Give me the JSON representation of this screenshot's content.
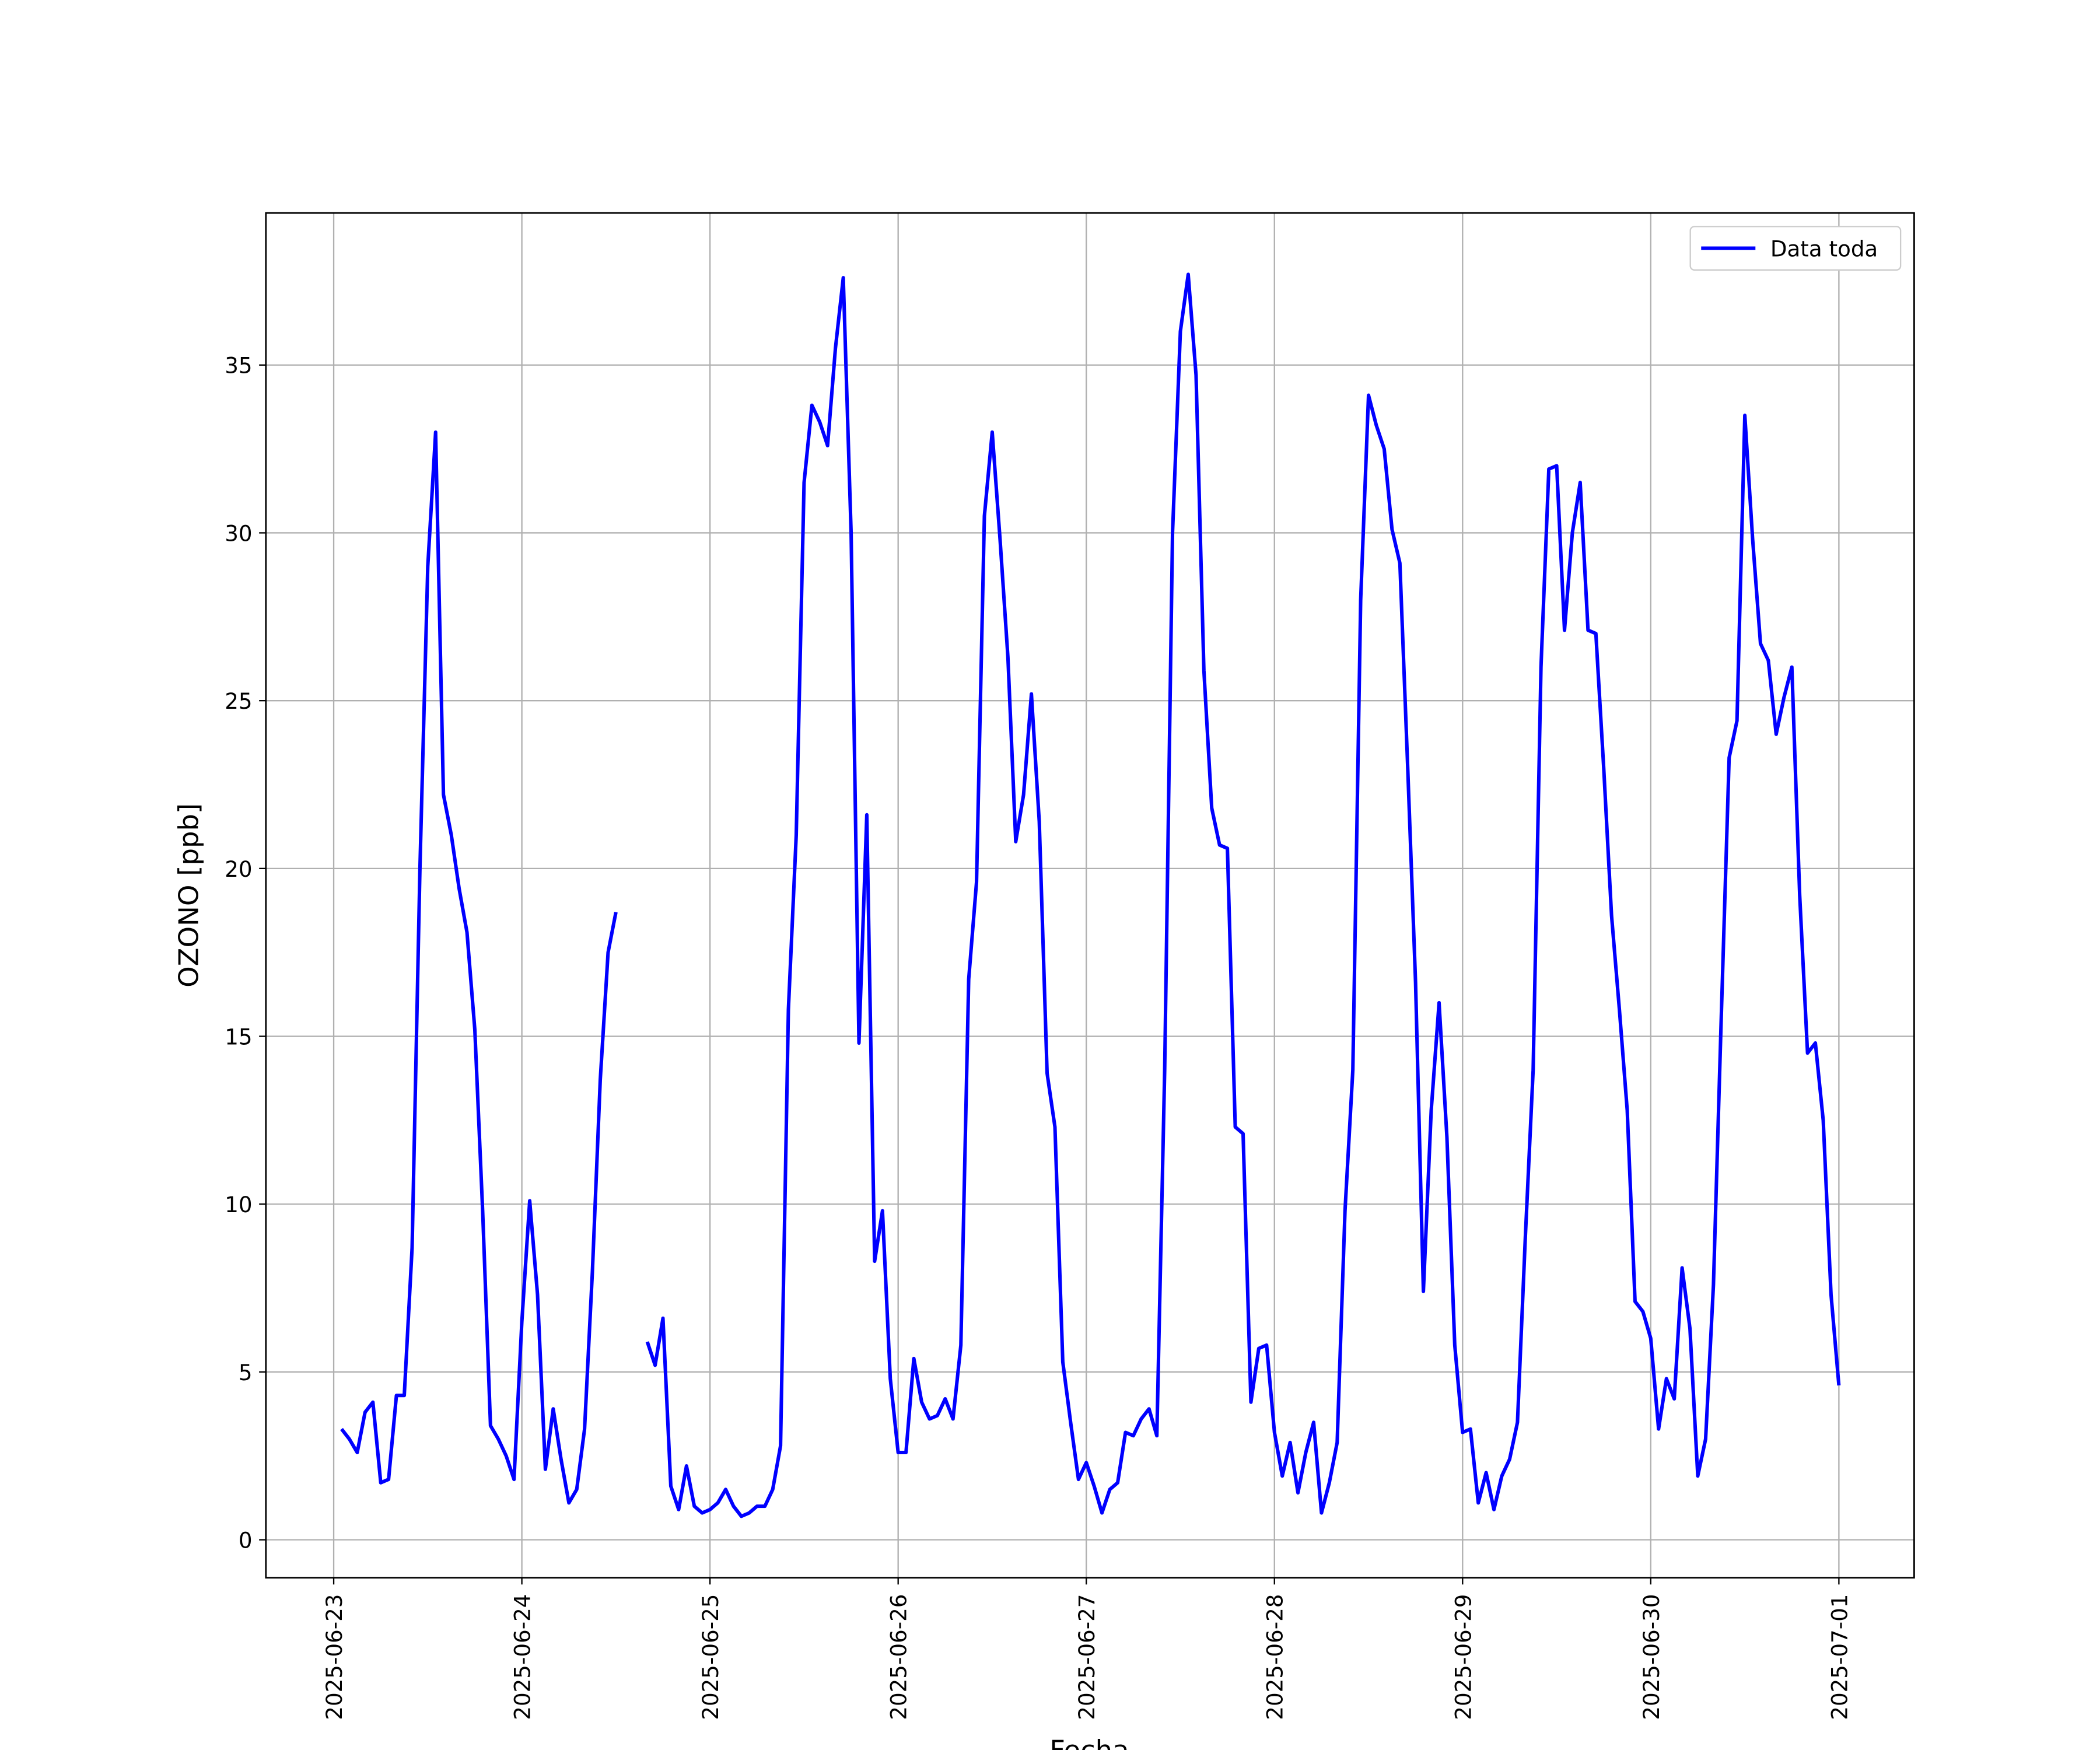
{
  "chart_data": {
    "type": "line",
    "xlabel": "Fecha",
    "ylabel": "OZONO [ppb]",
    "grid": true,
    "legend": "upper right",
    "x": [
      "2025-06-23 01:00",
      "2025-06-23 02:00",
      "2025-06-23 03:00",
      "2025-06-23 04:00",
      "2025-06-23 05:00",
      "2025-06-23 06:00",
      "2025-06-23 07:00",
      "2025-06-23 08:00",
      "2025-06-23 09:00",
      "2025-06-23 10:00",
      "2025-06-23 11:00",
      "2025-06-23 12:00",
      "2025-06-23 13:00",
      "2025-06-23 14:00",
      "2025-06-23 15:00",
      "2025-06-23 16:00",
      "2025-06-23 17:00",
      "2025-06-23 18:00",
      "2025-06-23 19:00",
      "2025-06-23 20:00",
      "2025-06-23 21:00",
      "2025-06-23 22:00",
      "2025-06-23 23:00",
      "2025-06-24 00:00",
      "2025-06-24 01:00",
      "2025-06-24 02:00",
      "2025-06-24 03:00",
      "2025-06-24 04:00",
      "2025-06-24 05:00",
      "2025-06-24 06:00",
      "2025-06-24 07:00",
      "2025-06-24 08:00",
      "2025-06-24 09:00",
      "2025-06-24 10:00",
      "2025-06-24 11:00",
      "2025-06-24 12:00",
      "2025-06-24 13:00",
      "2025-06-24 14:00",
      "2025-06-24 15:00",
      "2025-06-24 16:00",
      "2025-06-24 17:00",
      "2025-06-24 18:00",
      "2025-06-24 19:00",
      "2025-06-24 20:00",
      "2025-06-24 21:00",
      "2025-06-24 22:00",
      "2025-06-24 23:00",
      "2025-06-25 00:00",
      "2025-06-25 01:00",
      "2025-06-25 02:00",
      "2025-06-25 03:00",
      "2025-06-25 04:00",
      "2025-06-25 05:00",
      "2025-06-25 06:00",
      "2025-06-25 07:00",
      "2025-06-25 08:00",
      "2025-06-25 09:00",
      "2025-06-25 10:00",
      "2025-06-25 11:00",
      "2025-06-25 12:00",
      "2025-06-25 13:00",
      "2025-06-25 14:00",
      "2025-06-25 15:00",
      "2025-06-25 16:00",
      "2025-06-25 17:00",
      "2025-06-25 18:00",
      "2025-06-25 19:00",
      "2025-06-25 20:00",
      "2025-06-25 21:00",
      "2025-06-25 22:00",
      "2025-06-25 23:00",
      "2025-06-26 00:00",
      "2025-06-26 01:00",
      "2025-06-26 02:00",
      "2025-06-26 03:00",
      "2025-06-26 04:00",
      "2025-06-26 05:00",
      "2025-06-26 06:00",
      "2025-06-26 07:00",
      "2025-06-26 08:00",
      "2025-06-26 09:00",
      "2025-06-26 10:00",
      "2025-06-26 11:00",
      "2025-06-26 12:00",
      "2025-06-26 13:00",
      "2025-06-26 14:00",
      "2025-06-26 15:00",
      "2025-06-26 16:00",
      "2025-06-26 17:00",
      "2025-06-26 18:00",
      "2025-06-26 19:00",
      "2025-06-26 20:00",
      "2025-06-26 21:00",
      "2025-06-26 22:00",
      "2025-06-26 23:00",
      "2025-06-27 00:00",
      "2025-06-27 01:00",
      "2025-06-27 02:00",
      "2025-06-27 03:00",
      "2025-06-27 04:00",
      "2025-06-27 05:00",
      "2025-06-27 06:00",
      "2025-06-27 07:00",
      "2025-06-27 08:00",
      "2025-06-27 09:00",
      "2025-06-27 10:00",
      "2025-06-27 11:00",
      "2025-06-27 12:00",
      "2025-06-27 13:00",
      "2025-06-27 14:00",
      "2025-06-27 15:00",
      "2025-06-27 16:00",
      "2025-06-27 17:00",
      "2025-06-27 18:00",
      "2025-06-27 19:00",
      "2025-06-27 20:00",
      "2025-06-27 21:00",
      "2025-06-27 22:00",
      "2025-06-27 23:00",
      "2025-06-28 00:00",
      "2025-06-28 01:00",
      "2025-06-28 02:00",
      "2025-06-28 03:00",
      "2025-06-28 04:00",
      "2025-06-28 05:00",
      "2025-06-28 06:00",
      "2025-06-28 07:00",
      "2025-06-28 08:00",
      "2025-06-28 09:00",
      "2025-06-28 10:00",
      "2025-06-28 11:00",
      "2025-06-28 12:00",
      "2025-06-28 13:00",
      "2025-06-28 14:00",
      "2025-06-28 15:00",
      "2025-06-28 16:00",
      "2025-06-28 17:00",
      "2025-06-28 18:00",
      "2025-06-28 19:00",
      "2025-06-28 20:00",
      "2025-06-28 21:00",
      "2025-06-28 22:00",
      "2025-06-28 23:00",
      "2025-06-29 00:00",
      "2025-06-29 01:00",
      "2025-06-29 02:00",
      "2025-06-29 03:00",
      "2025-06-29 04:00",
      "2025-06-29 05:00",
      "2025-06-29 06:00",
      "2025-06-29 07:00",
      "2025-06-29 08:00",
      "2025-06-29 09:00",
      "2025-06-29 10:00",
      "2025-06-29 11:00",
      "2025-06-29 12:00",
      "2025-06-29 13:00",
      "2025-06-29 14:00",
      "2025-06-29 15:00",
      "2025-06-29 16:00",
      "2025-06-29 17:00",
      "2025-06-29 18:00",
      "2025-06-29 19:00",
      "2025-06-29 20:00",
      "2025-06-29 21:00",
      "2025-06-29 22:00",
      "2025-06-29 23:00",
      "2025-06-30 00:00",
      "2025-06-30 01:00",
      "2025-06-30 02:00",
      "2025-06-30 03:00",
      "2025-06-30 04:00",
      "2025-06-30 05:00",
      "2025-06-30 06:00",
      "2025-06-30 07:00",
      "2025-06-30 08:00",
      "2025-06-30 09:00",
      "2025-06-30 10:00",
      "2025-06-30 11:00",
      "2025-06-30 12:00",
      "2025-06-30 13:00",
      "2025-06-30 14:00",
      "2025-06-30 15:00",
      "2025-06-30 16:00",
      "2025-06-30 17:00",
      "2025-06-30 18:00",
      "2025-06-30 19:00",
      "2025-06-30 20:00",
      "2025-06-30 21:00",
      "2025-06-30 22:00",
      "2025-06-30 23:00",
      "2025-07-01 00:00"
    ],
    "series": [
      {
        "name": "Data toda",
        "color": "#0000ff",
        "values": [
          3.3,
          3.0,
          2.6,
          3.8,
          4.1,
          1.7,
          1.8,
          4.3,
          4.3,
          8.7,
          20,
          29,
          33,
          22.2,
          21,
          19.4,
          18.1,
          15.2,
          9.8,
          3.4,
          3.0,
          2.5,
          1.8,
          6.5,
          10.1,
          7.3,
          2.1,
          3.9,
          2.4,
          1.1,
          1.5,
          3.3,
          8,
          13.7,
          17.5,
          18.7,
          null,
          null,
          null,
          5.9,
          5.2,
          6.6,
          1.6,
          0.9,
          2.2,
          1.0,
          0.8,
          0.9,
          1.1,
          1.5,
          1.0,
          0.7,
          0.8,
          1.0,
          1.0,
          1.5,
          2.8,
          15.8,
          21,
          31.5,
          33.8,
          33.3,
          32.6,
          35.5,
          37.6,
          30,
          14.8,
          21.6,
          8.3,
          9.8,
          4.8,
          2.6,
          2.6,
          5.4,
          4.1,
          3.6,
          3.7,
          4.2,
          3.6,
          5.8,
          16.7,
          19.6,
          30.5,
          33,
          29.8,
          26.3,
          20.8,
          22.2,
          25.2,
          21.4,
          13.9,
          12.3,
          5.3,
          3.5,
          1.8,
          2.3,
          1.6,
          0.8,
          1.5,
          1.7,
          3.2,
          3.1,
          3.6,
          3.9,
          3.1,
          14,
          30,
          36,
          37.7,
          34.7,
          25.9,
          21.8,
          20.7,
          20.6,
          12.3,
          12.1,
          4.1,
          5.7,
          5.8,
          3.2,
          1.9,
          2.9,
          1.4,
          2.6,
          3.5,
          0.8,
          1.7,
          2.9,
          9.8,
          14,
          28,
          34.1,
          33.2,
          32.5,
          30.1,
          29.1,
          23,
          16.6,
          7.4,
          12.8,
          16,
          12,
          5.8,
          3.2,
          3.3,
          1.1,
          2.0,
          0.9,
          1.9,
          2.4,
          3.5,
          9,
          14,
          26,
          31.9,
          32,
          27.1,
          30,
          31.5,
          27.1,
          27,
          23,
          18.6,
          15.8,
          12.8,
          7.1,
          6.8,
          6.0,
          3.3,
          4.8,
          4.2,
          8.1,
          6.3,
          1.9,
          3.0,
          7.6,
          15.6,
          23.3,
          24.4,
          33.5,
          29.8,
          26.7,
          26.2,
          24,
          25.1,
          26,
          19.2,
          14.5,
          14.8,
          12.5,
          7.3,
          4.6
        ]
      }
    ],
    "xlim": [
      "2025-06-22 15:21",
      "2025-07-01 09:36"
    ],
    "xticks": [
      "2025-06-23",
      "2025-06-24",
      "2025-06-25",
      "2025-06-26",
      "2025-06-27",
      "2025-06-28",
      "2025-06-29",
      "2025-06-30",
      "2025-07-01"
    ],
    "ylim": [
      -1.13,
      39.53
    ],
    "yticks": [
      0,
      5,
      10,
      15,
      20,
      25,
      30,
      35
    ]
  }
}
